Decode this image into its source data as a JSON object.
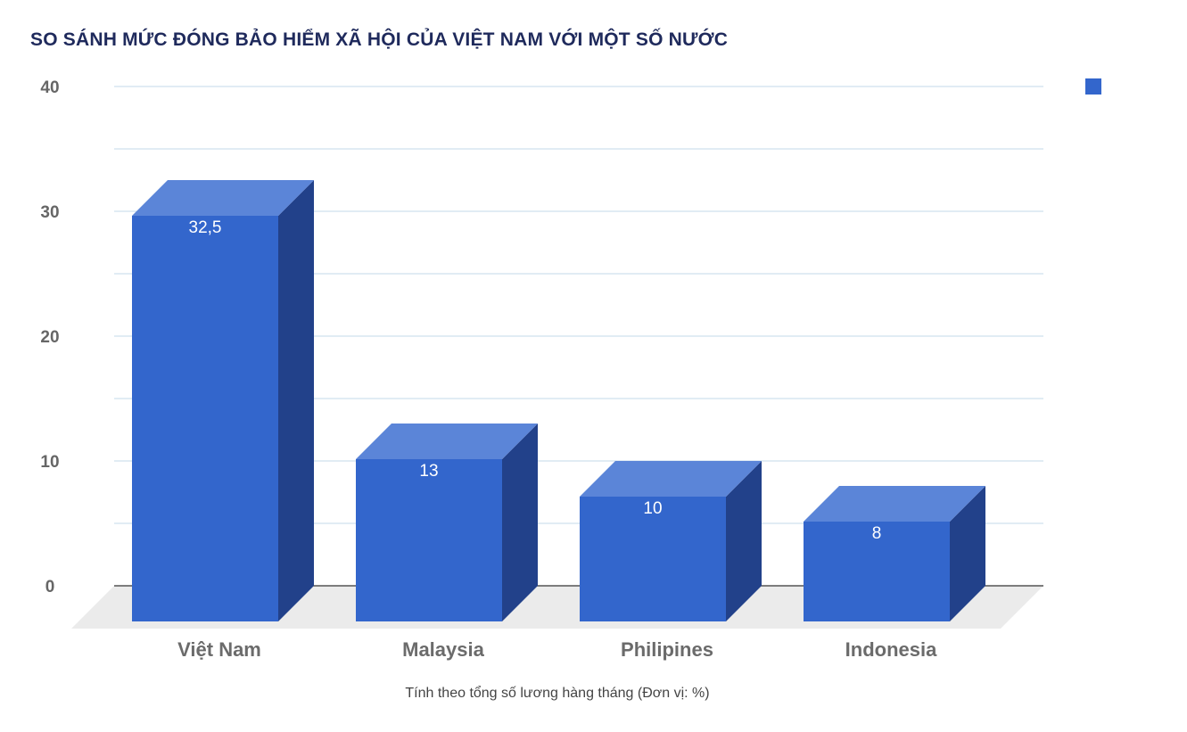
{
  "chart_data": {
    "type": "bar",
    "title": "SO SÁNH MỨC ĐÓNG BẢO HIỂM XÃ HỘI CỦA VIỆT NAM VỚI MỘT SỐ NƯỚC",
    "xlabel": "Tính theo tổng số lương hàng tháng (Đơn vị: %)",
    "ylabel": "",
    "categories": [
      "Việt Nam",
      "Malaysia",
      "Philipines",
      "Indonesia"
    ],
    "series": [
      {
        "values": [
          32.5,
          13,
          10,
          8
        ],
        "labels": [
          "32,5",
          "13",
          "10",
          "8"
        ]
      }
    ],
    "ylim": [
      0,
      40
    ],
    "yticks": [
      0,
      10,
      20,
      30,
      40
    ],
    "grid": true,
    "style": "3d-bar",
    "legend_position": "top-right",
    "colors": {
      "bar_front": "#3366cc",
      "bar_top": "#5b85d8",
      "bar_side": "#22418a",
      "grid": "#cfe0ee",
      "floor": "#ebebeb",
      "axis": "#333333",
      "title": "#1f2a5c"
    }
  }
}
